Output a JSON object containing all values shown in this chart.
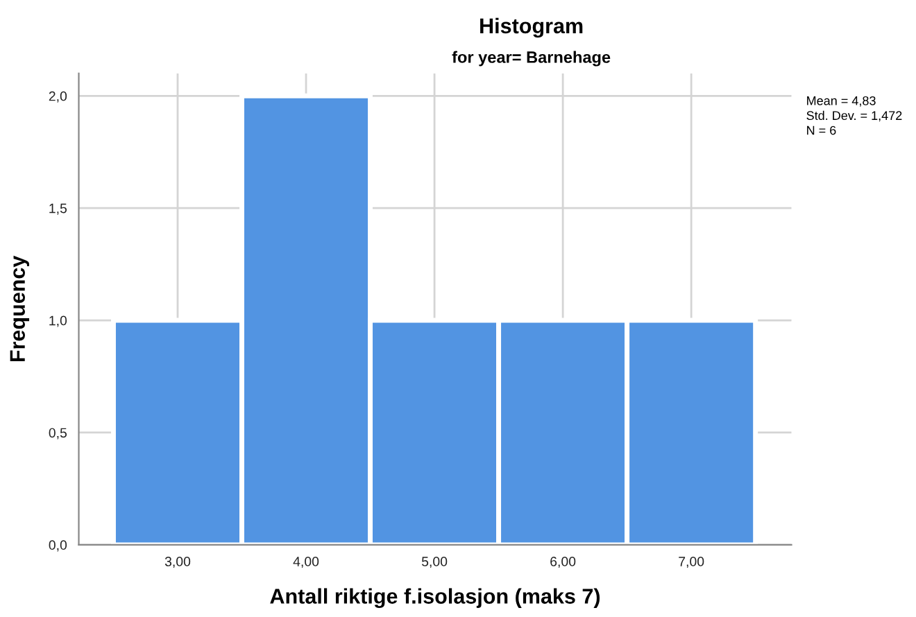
{
  "chart_data": {
    "type": "histogram",
    "title": "Histogram",
    "subtitle": "for year= Barnehage",
    "xlabel": "Antall riktige f.isolasjon (maks 7)",
    "ylabel": "Frequency",
    "bins": [
      2.5,
      3.5,
      4.5,
      5.5,
      6.5,
      7.5
    ],
    "values": [
      1,
      2,
      1,
      1,
      1
    ],
    "color": "#5294e2",
    "xlim": [
      2.23,
      7.78
    ],
    "ylim": [
      0,
      2.1
    ],
    "xticks": [
      {
        "value": 3,
        "label": "3,00"
      },
      {
        "value": 4,
        "label": "4,00"
      },
      {
        "value": 5,
        "label": "5,00"
      },
      {
        "value": 6,
        "label": "6,00"
      },
      {
        "value": 7,
        "label": "7,00"
      }
    ],
    "yticks": [
      {
        "value": 0,
        "label": "0,0"
      },
      {
        "value": 0.5,
        "label": "0,5"
      },
      {
        "value": 1,
        "label": "1,0"
      },
      {
        "value": 1.5,
        "label": "1,5"
      },
      {
        "value": 2,
        "label": "2,0"
      }
    ],
    "grid": true,
    "annotations": [
      "Mean = 4,83",
      "Std. Dev. = 1,472",
      "N = 6"
    ]
  }
}
